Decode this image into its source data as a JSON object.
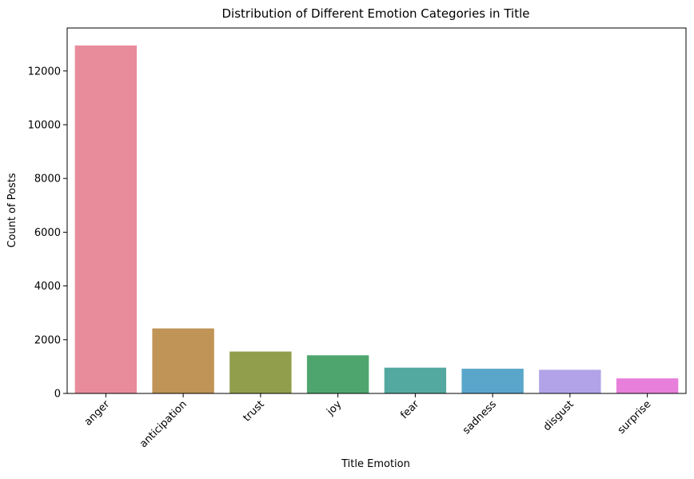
{
  "chart_data": {
    "type": "bar",
    "title": "Distribution of Different Emotion Categories in Title",
    "xlabel": "Title Emotion",
    "ylabel": "Count of Posts",
    "categories": [
      "anger",
      "anticipation",
      "trust",
      "joy",
      "fear",
      "sadness",
      "disgust",
      "surprise"
    ],
    "values": [
      12950,
      2420,
      1560,
      1420,
      960,
      920,
      880,
      560
    ],
    "colors": [
      "#e88c9b",
      "#c09456",
      "#919f4c",
      "#4ea66e",
      "#53a9a0",
      "#59a6ca",
      "#b2a2e8",
      "#e77fdb"
    ],
    "ylim": [
      0,
      13600
    ],
    "yticks": [
      0,
      2000,
      4000,
      6000,
      8000,
      10000,
      12000
    ],
    "ytick_labels": [
      "0",
      "2000",
      "4000",
      "6000",
      "8000",
      "10000",
      "12000"
    ],
    "grid": false,
    "legend": "none"
  }
}
